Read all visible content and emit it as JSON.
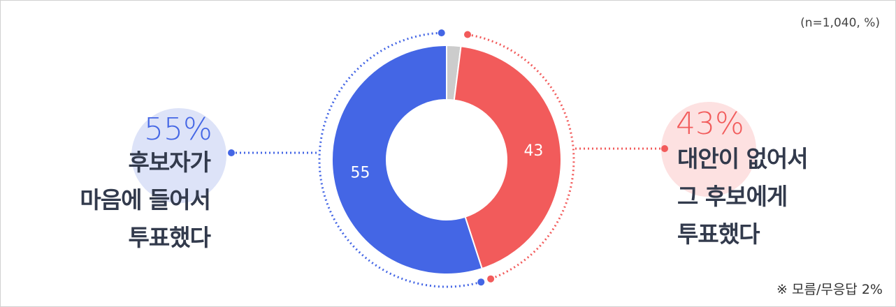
{
  "chart_data": {
    "type": "donut",
    "note": "(n=1,040, %)",
    "footnote_mark": "※",
    "categories": [
      "모름/무응답",
      "대안이 없어서\n그 후보에게\n투표했다",
      "후보자가\n마음에 들어서\n투표했다"
    ],
    "values": [
      2,
      43,
      55
    ],
    "value_labels": [
      "2%",
      "43%",
      "55%"
    ],
    "colors": [
      "#cccccc",
      "#f25b5b",
      "#4466e5"
    ]
  }
}
